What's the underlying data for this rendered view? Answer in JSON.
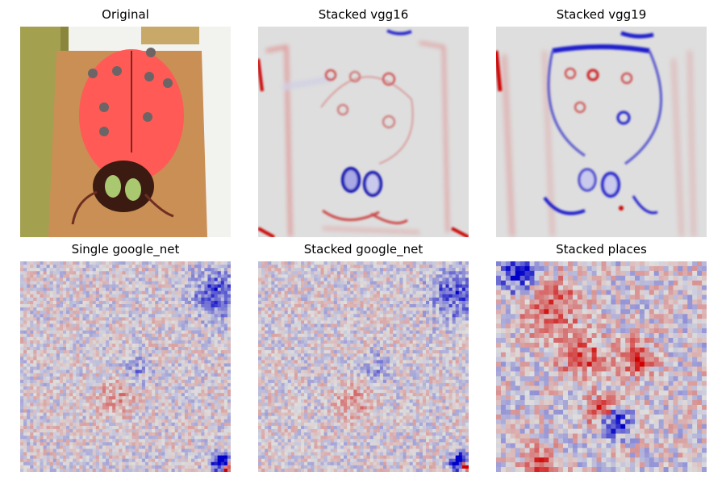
{
  "figure": {
    "panels": [
      {
        "id": "original",
        "title": "Original",
        "kind": "photo",
        "icon": "ladybug-cake-photo"
      },
      {
        "id": "vgg16",
        "title": "Stacked vgg16",
        "kind": "smooth-heatmap",
        "colormap": "seismic",
        "dominant": "mixed"
      },
      {
        "id": "vgg19",
        "title": "Stacked vgg19",
        "kind": "smooth-heatmap",
        "colormap": "seismic",
        "dominant": "blue"
      },
      {
        "id": "google_single",
        "title": "Single google_net",
        "kind": "grid-heatmap",
        "colormap": "seismic"
      },
      {
        "id": "google_stacked",
        "title": "Stacked google_net",
        "kind": "grid-heatmap",
        "colormap": "seismic"
      },
      {
        "id": "places",
        "title": "Stacked places",
        "kind": "grid-heatmap",
        "colormap": "seismic"
      }
    ],
    "colors": {
      "neutral": "#dedede",
      "positive": "#d00000",
      "negative": "#0000c8",
      "cake_red": "#ff5a55",
      "cake_head": "#3b1a12",
      "eye_green": "#a9c870",
      "board_wood": "#c98f55",
      "wall_yellow": "#a3a050"
    }
  }
}
